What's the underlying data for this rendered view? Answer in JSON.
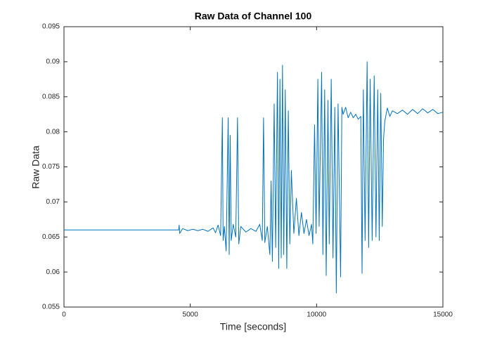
{
  "chart_data": {
    "type": "line",
    "title": "Raw Data of Channel 100",
    "x_label": "Time [seconds]",
    "y_label": "Raw Data",
    "x": [
      0,
      4540,
      4560,
      4580,
      4700,
      4900,
      5100,
      5300,
      5500,
      5700,
      5900,
      6000,
      6100,
      6200,
      6270,
      6300,
      6350,
      6420,
      6500,
      6540,
      6580,
      6620,
      6700,
      6800,
      6870,
      6920,
      7000,
      7200,
      7400,
      7600,
      7750,
      7850,
      7900,
      7950,
      8050,
      8150,
      8200,
      8250,
      8320,
      8380,
      8450,
      8500,
      8550,
      8600,
      8650,
      8700,
      8760,
      8820,
      8880,
      8940,
      9000,
      9100,
      9200,
      9300,
      9400,
      9500,
      9600,
      9700,
      9800,
      9850,
      9920,
      9980,
      10050,
      10100,
      10200,
      10250,
      10320,
      10380,
      10450,
      10500,
      10580,
      10650,
      10720,
      10780,
      10850,
      10950,
      11000,
      11050,
      11150,
      11250,
      11350,
      11450,
      11550,
      11650,
      11750,
      11800,
      11850,
      11920,
      12000,
      12060,
      12120,
      12200,
      12280,
      12350,
      12420,
      12480,
      12540,
      12600,
      12650,
      12700,
      12800,
      12900,
      13000,
      13200,
      13400,
      13600,
      13800,
      14000,
      14200,
      14400,
      14600,
      14800,
      15000
    ],
    "series": [
      {
        "color": "#0072bd",
        "values": [
          0.066,
          0.066,
          0.0667,
          0.0655,
          0.0662,
          0.0659,
          0.0661,
          0.0659,
          0.0661,
          0.0658,
          0.0663,
          0.0656,
          0.0667,
          0.0652,
          0.082,
          0.0645,
          0.0665,
          0.063,
          0.082,
          0.0625,
          0.0795,
          0.0645,
          0.0668,
          0.065,
          0.082,
          0.064,
          0.0665,
          0.0657,
          0.0662,
          0.0658,
          0.0668,
          0.0645,
          0.082,
          0.0642,
          0.0665,
          0.0625,
          0.073,
          0.0615,
          0.084,
          0.0635,
          0.0885,
          0.0605,
          0.0875,
          0.062,
          0.0895,
          0.0625,
          0.086,
          0.0605,
          0.083,
          0.064,
          0.0745,
          0.0655,
          0.0705,
          0.0652,
          0.0685,
          0.0655,
          0.0675,
          0.0652,
          0.0668,
          0.064,
          0.081,
          0.0655,
          0.0875,
          0.0665,
          0.0885,
          0.0625,
          0.086,
          0.0595,
          0.0845,
          0.064,
          0.0875,
          0.062,
          0.0835,
          0.057,
          0.084,
          0.0593,
          0.0835,
          0.0825,
          0.0835,
          0.082,
          0.0828,
          0.082,
          0.0825,
          0.0818,
          0.0822,
          0.0598,
          0.086,
          0.0645,
          0.09,
          0.0635,
          0.0875,
          0.0645,
          0.088,
          0.065,
          0.086,
          0.0645,
          0.0855,
          0.0665,
          0.079,
          0.0815,
          0.0834,
          0.0822,
          0.083,
          0.0826,
          0.0831,
          0.0825,
          0.0832,
          0.0826,
          0.0833,
          0.0827,
          0.0832,
          0.0826,
          0.0828
        ]
      }
    ],
    "xlim": [
      0,
      15000
    ],
    "xticks": [
      0,
      5000,
      10000,
      15000
    ],
    "ylim": [
      0.055,
      0.095
    ],
    "yticks": [
      0.055,
      0.06,
      0.065,
      0.07,
      0.075,
      0.08,
      0.085,
      0.09,
      0.095
    ]
  }
}
